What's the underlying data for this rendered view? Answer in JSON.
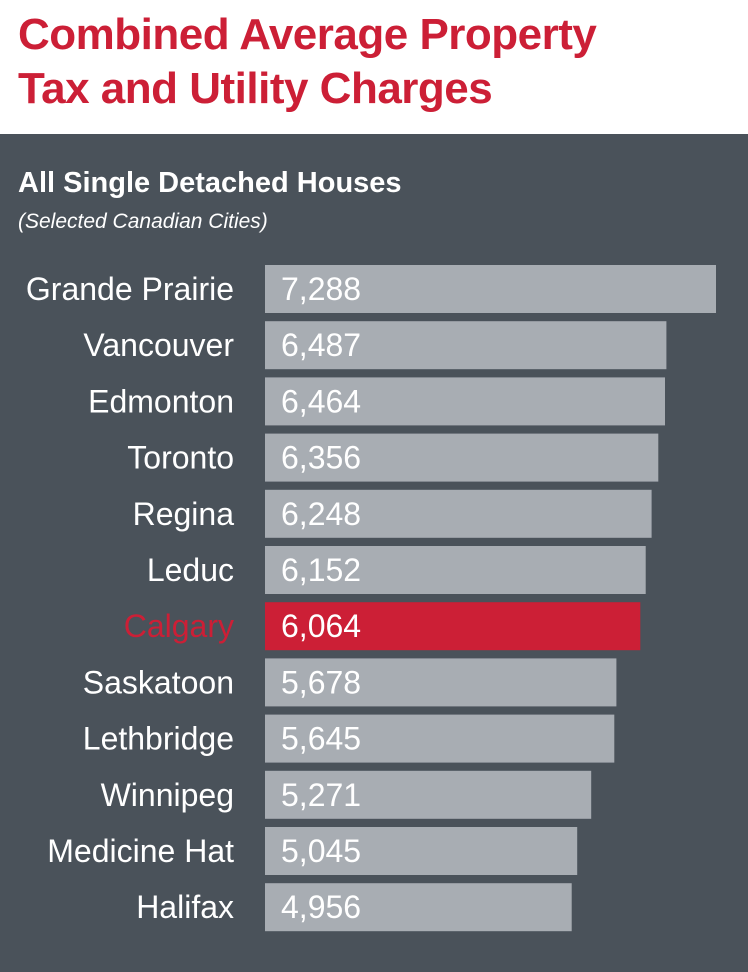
{
  "title_lines": [
    "Combined Average Property",
    "Tax and Utility Charges"
  ],
  "colors": {
    "title": "#cc1f36",
    "panel_background": "#4a525a",
    "bar": "#a8adb3",
    "highlight_bar": "#cc1f36",
    "highlight_label": "#cc1f36",
    "label_text": "#ffffff",
    "value_text": "#ffffff"
  },
  "chart_data": {
    "type": "bar",
    "orientation": "horizontal",
    "title": "All Single Detached Houses",
    "subtitle": "(Selected Canadian Cities)",
    "categories": [
      "Grande Prairie",
      "Vancouver",
      "Edmonton",
      "Toronto",
      "Regina",
      "Leduc",
      "Calgary",
      "Saskatoon",
      "Lethbridge",
      "Winnipeg",
      "Medicine Hat",
      "Halifax"
    ],
    "values": [
      7288,
      6487,
      6464,
      6356,
      6248,
      6152,
      6064,
      5678,
      5645,
      5271,
      5045,
      4956
    ],
    "value_labels": [
      "7,288",
      "6,487",
      "6,464",
      "6,356",
      "6,248",
      "6,152",
      "6,064",
      "5,678",
      "5,645",
      "5,271",
      "5,045",
      "4,956"
    ],
    "highlight": "Calgary",
    "grid": false,
    "legend": "none"
  }
}
